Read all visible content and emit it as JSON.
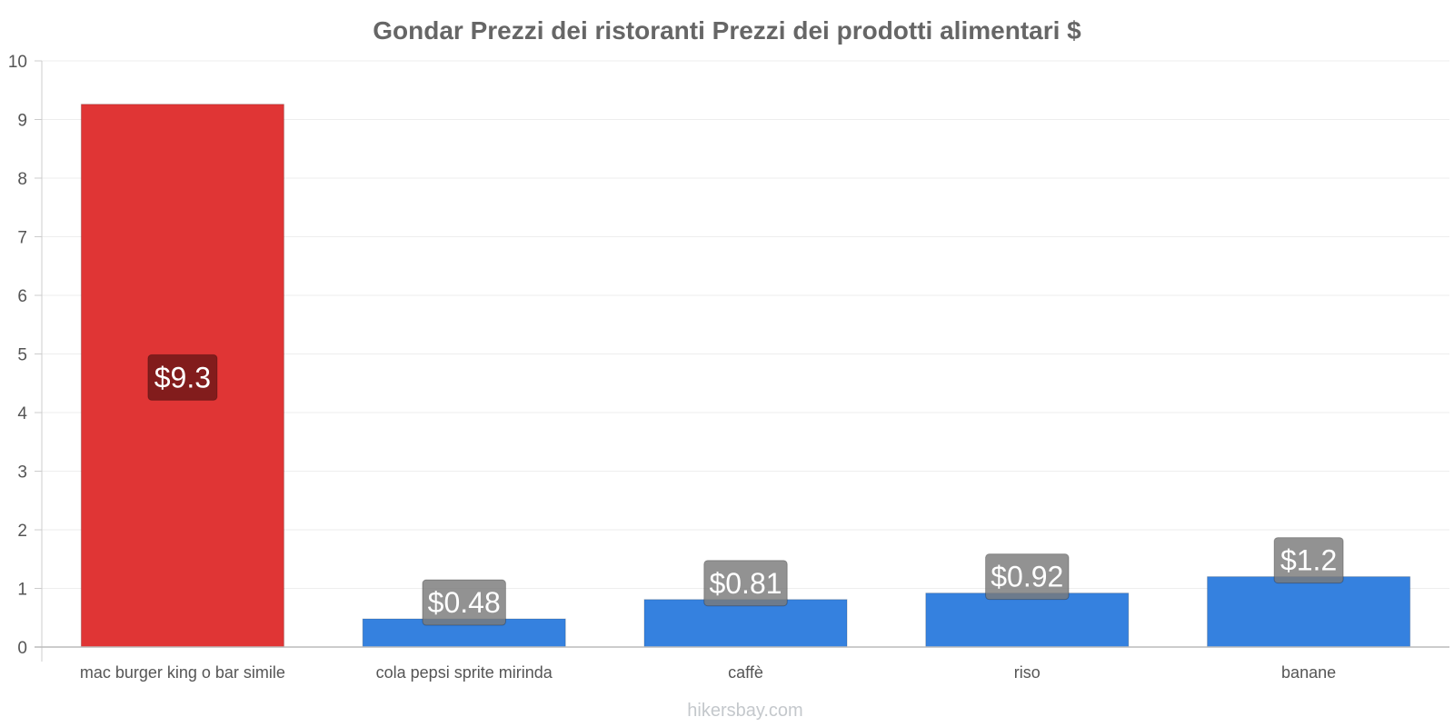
{
  "chart_data": {
    "type": "bar",
    "title": "Gondar Prezzi dei ristoranti Prezzi dei prodotti alimentari $",
    "categories": [
      "mac burger king o bar simile",
      "cola pepsi sprite mirinda",
      "caffè",
      "riso",
      "banane"
    ],
    "values": [
      9.26,
      0.48,
      0.81,
      0.92,
      1.2
    ],
    "data_labels": [
      "$9.3",
      "$0.48",
      "$0.81",
      "$0.92",
      "$1.2"
    ],
    "bar_colors": [
      "#e03535",
      "#3581df",
      "#3581df",
      "#3581df",
      "#3581df"
    ],
    "label_box_colors": [
      "#7a1a1a",
      "#7a7a7a",
      "#7a7a7a",
      "#7a7a7a",
      "#7a7a7a"
    ],
    "ylim": [
      0,
      10
    ],
    "yticks": [
      0,
      1,
      2,
      3,
      4,
      5,
      6,
      7,
      8,
      9,
      10
    ],
    "xlabel": "",
    "ylabel": "",
    "grid": true
  },
  "watermark": "hikersbay.com"
}
